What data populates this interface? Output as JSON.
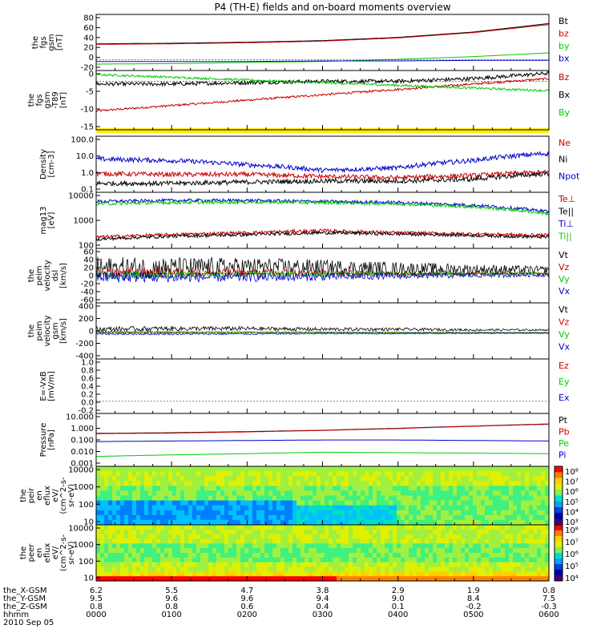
{
  "title": "P4 (TH-E) fields and on-board moments overview",
  "colors": {
    "black": "#000000",
    "red": "#cc0000",
    "green": "#00cc00",
    "blue": "#0000cc",
    "yellow": "#ffee00"
  },
  "chart_data": [
    {
      "id": "fgs",
      "type": "line",
      "ylabel": [
        "the",
        "fgs",
        "gsm",
        "[nT]"
      ],
      "yticks": [
        "80",
        "60",
        "40",
        "20",
        "0",
        "-20"
      ],
      "ylim": [
        -20,
        85
      ],
      "legend": [
        {
          "name": "Bt",
          "color": "black"
        },
        {
          "name": "bz",
          "color": "red"
        },
        {
          "name": "by",
          "color": "green"
        },
        {
          "name": "bx",
          "color": "blue"
        }
      ],
      "x": [
        0,
        1,
        2,
        3,
        4,
        5,
        6
      ],
      "series": [
        {
          "name": "Bt",
          "color": "black",
          "values": [
            30,
            31,
            33,
            36,
            42,
            52,
            68
          ]
        },
        {
          "name": "bz",
          "color": "red",
          "values": [
            29,
            30,
            32,
            35,
            41,
            51,
            66
          ]
        },
        {
          "name": "by",
          "color": "green",
          "values": [
            -8,
            -7,
            -5,
            -3,
            1,
            6,
            13
          ]
        },
        {
          "name": "bx",
          "color": "blue",
          "values": [
            -3,
            -3,
            -3,
            -2,
            -2,
            -1,
            -1
          ]
        }
      ]
    },
    {
      "id": "fgs_dsl",
      "type": "line",
      "ylabel": [
        "the",
        "fgs",
        "gsm",
        "-T89",
        "[nT]"
      ],
      "yticks": [
        "0",
        "-5",
        "-10",
        "-15"
      ],
      "ylim": [
        -18,
        4
      ],
      "legend": [
        {
          "name": "Bz",
          "color": "red"
        },
        {
          "name": "Bx",
          "color": "black"
        },
        {
          "name": "By",
          "color": "green"
        }
      ],
      "x": [
        0,
        1,
        2,
        3,
        4,
        5,
        6
      ],
      "series": [
        {
          "name": "Bz",
          "color": "red",
          "values": [
            -11,
            -9,
            -7,
            -5,
            -3,
            -1,
            1
          ]
        },
        {
          "name": "Bx",
          "color": "black",
          "values": [
            -1,
            -1,
            -0.5,
            0,
            0,
            1,
            3
          ]
        },
        {
          "name": "By",
          "color": "green",
          "values": [
            2.5,
            1.5,
            0.5,
            -0.5,
            -1.5,
            -2.5,
            -3.5
          ]
        }
      ]
    },
    {
      "id": "density",
      "type": "line",
      "log": true,
      "ylabel": [
        "Density",
        "[cm-3]"
      ],
      "yticks": [
        "100.0",
        "10.0",
        "1.0",
        "0.1"
      ],
      "ylim": [
        0.1,
        100
      ],
      "legend": [
        {
          "name": "Ne",
          "color": "red"
        },
        {
          "name": "Ni",
          "color": "black"
        },
        {
          "name": "Npot",
          "color": "blue"
        }
      ],
      "x": [
        0,
        1,
        2,
        3,
        4,
        5,
        6
      ],
      "series": [
        {
          "name": "Npot",
          "color": "blue",
          "values": [
            6,
            5,
            3,
            1.5,
            2,
            5,
            12
          ]
        },
        {
          "name": "Ne",
          "color": "red",
          "values": [
            1,
            0.9,
            0.9,
            0.7,
            0.6,
            0.8,
            1.2
          ]
        },
        {
          "name": "Ni",
          "color": "black",
          "values": [
            0.3,
            0.3,
            0.35,
            0.4,
            0.4,
            0.5,
            1
          ]
        }
      ]
    },
    {
      "id": "temp",
      "type": "line",
      "log": true,
      "ylabel": [
        "mag13",
        "[eV]"
      ],
      "yticks": [
        "10000",
        "1000",
        "100"
      ],
      "ylim": [
        30,
        12000
      ],
      "legend": [
        {
          "name": "Te⊥",
          "color": "red"
        },
        {
          "name": "Te||",
          "color": "black"
        },
        {
          "name": "Ti⊥",
          "color": "blue"
        },
        {
          "name": "Ti||",
          "color": "green"
        }
      ],
      "x": [
        0,
        1,
        2,
        3,
        4,
        5,
        6
      ],
      "series": [
        {
          "name": "Ti⊥",
          "color": "blue",
          "values": [
            4500,
            5000,
            5000,
            4500,
            4000,
            3000,
            1500
          ]
        },
        {
          "name": "Ti||",
          "color": "green",
          "values": [
            3500,
            4000,
            4200,
            4000,
            3500,
            2500,
            1200
          ]
        },
        {
          "name": "Te⊥",
          "color": "red",
          "values": [
            100,
            130,
            160,
            200,
            160,
            140,
            120
          ]
        },
        {
          "name": "Te||",
          "color": "black",
          "values": [
            80,
            110,
            130,
            160,
            140,
            120,
            100
          ]
        }
      ]
    },
    {
      "id": "vel_dsl",
      "type": "line",
      "ylabel": [
        "the",
        "peim",
        "velocity",
        "dsl",
        "[km/s]"
      ],
      "yticks": [
        "60",
        "40",
        "20",
        "0",
        "-20",
        "-40",
        "-60"
      ],
      "ylim": [
        -70,
        60
      ],
      "legend": [
        {
          "name": "Vt",
          "color": "black"
        },
        {
          "name": "Vz",
          "color": "red"
        },
        {
          "name": "Vy",
          "color": "green"
        },
        {
          "name": "Vx",
          "color": "blue"
        }
      ],
      "x": [
        0,
        1,
        2,
        3,
        4,
        5,
        6
      ],
      "series": [
        {
          "name": "Vt",
          "color": "black",
          "values": [
            12,
            14,
            16,
            15,
            12,
            10,
            8
          ]
        },
        {
          "name": "Vz",
          "color": "red",
          "values": [
            2,
            2,
            1,
            1,
            0,
            0,
            0
          ]
        },
        {
          "name": "Vy",
          "color": "green",
          "values": [
            -3,
            -2,
            -2,
            -1,
            -1,
            0,
            0
          ]
        },
        {
          "name": "Vx",
          "color": "blue",
          "values": [
            -8,
            -9,
            -9,
            -8,
            -6,
            -4,
            -3
          ]
        }
      ]
    },
    {
      "id": "vel_gsm",
      "type": "line",
      "ylabel": [
        "the",
        "peim",
        "velocity",
        "gsm",
        "[km/s]"
      ],
      "yticks": [
        "400",
        "200",
        "0",
        "-200",
        "-400"
      ],
      "ylim": [
        -400,
        450
      ],
      "legend": [
        {
          "name": "Vt",
          "color": "black"
        },
        {
          "name": "Vz",
          "color": "red"
        },
        {
          "name": "Vy",
          "color": "green"
        },
        {
          "name": "Vx",
          "color": "blue"
        }
      ],
      "x": [
        0,
        1,
        2,
        3,
        4,
        5,
        6
      ],
      "series": [
        {
          "name": "Vt",
          "color": "black",
          "values": [
            50,
            60,
            60,
            50,
            50,
            40,
            40
          ]
        },
        {
          "name": "Vz",
          "color": "red",
          "values": [
            5,
            5,
            5,
            5,
            0,
            0,
            0
          ]
        },
        {
          "name": "Vy",
          "color": "green",
          "values": [
            10,
            10,
            5,
            5,
            5,
            0,
            0
          ]
        },
        {
          "name": "Vx",
          "color": "blue",
          "values": [
            -20,
            -20,
            -20,
            -15,
            -15,
            -10,
            -10
          ]
        }
      ]
    },
    {
      "id": "efield",
      "type": "line",
      "ylabel": [
        "E=-VxB",
        "[mV/m]"
      ],
      "yticks": [
        "1.0",
        "0.8",
        "0.6",
        "0.4",
        "0.2",
        "0.0",
        "-0.2"
      ],
      "ylim": [
        -0.3,
        1.05
      ],
      "legend": [
        {
          "name": "Ez",
          "color": "red"
        },
        {
          "name": "Ey",
          "color": "green"
        },
        {
          "name": "Ex",
          "color": "blue"
        }
      ],
      "x": [],
      "series": []
    },
    {
      "id": "pressure",
      "type": "line",
      "log": true,
      "ylabel": [
        "Pressure",
        "[nPa]"
      ],
      "yticks": [
        "10.000",
        "1.000",
        "0.100",
        "0.010",
        "0.001"
      ],
      "ylim": [
        0.001,
        15
      ],
      "legend": [
        {
          "name": "Pt",
          "color": "black"
        },
        {
          "name": "Pb",
          "color": "red"
        },
        {
          "name": "Pe",
          "color": "green"
        },
        {
          "name": "Pi",
          "color": "blue"
        }
      ],
      "x": [
        0,
        1,
        2,
        3,
        4,
        5,
        6
      ],
      "series": [
        {
          "name": "Pt",
          "color": "black",
          "values": [
            0.4,
            0.45,
            0.55,
            0.7,
            1,
            1.5,
            2.2
          ]
        },
        {
          "name": "Pb",
          "color": "red",
          "values": [
            0.38,
            0.42,
            0.52,
            0.68,
            0.95,
            1.45,
            2.1
          ]
        },
        {
          "name": "Pi",
          "color": "blue",
          "values": [
            0.09,
            0.1,
            0.11,
            0.12,
            0.12,
            0.11,
            0.1
          ]
        },
        {
          "name": "Pe",
          "color": "green",
          "values": [
            0.006,
            0.008,
            0.01,
            0.013,
            0.012,
            0.011,
            0.01
          ]
        }
      ]
    },
    {
      "id": "peir",
      "type": "heatmap",
      "ylabel": [
        "the",
        "peir",
        "en",
        "eflux",
        "eV/",
        "(cm^2-s-",
        "sr-eV)"
      ],
      "yticks": [
        "10000",
        "1000",
        "100",
        "10"
      ],
      "cbar_ticks": [
        "10⁸",
        "10⁷",
        "10⁶",
        "10⁵",
        "10⁴",
        "10³"
      ]
    },
    {
      "id": "peer",
      "type": "heatmap",
      "ylabel": [
        "the",
        "peer",
        "en",
        "eflux",
        "eV/",
        "(cm^2-s-",
        "sr-eV)"
      ],
      "yticks": [
        "10000",
        "1000",
        "100",
        "10"
      ],
      "cbar_ticks": [
        "10⁸",
        "10⁷",
        "10⁶",
        "10⁵",
        "10⁴"
      ]
    }
  ],
  "footer": {
    "rows": [
      {
        "label": "the_X-GSM",
        "values": [
          "6.2",
          "5.5",
          "4.7",
          "3.8",
          "2.9",
          "1.9",
          "0.8"
        ]
      },
      {
        "label": "the_Y-GSM",
        "values": [
          "9.5",
          "9.6",
          "9.6",
          "9.4",
          "9.0",
          "8.4",
          "7.5"
        ]
      },
      {
        "label": "the_Z-GSM",
        "values": [
          "0.8",
          "0.8",
          "0.6",
          "0.4",
          "0.1",
          "-0.2",
          "-0.3"
        ]
      },
      {
        "label": "hhmm",
        "values": [
          "0000",
          "0100",
          "0200",
          "0300",
          "0400",
          "0500",
          "0600"
        ]
      }
    ],
    "date": "2010 Sep 05"
  }
}
